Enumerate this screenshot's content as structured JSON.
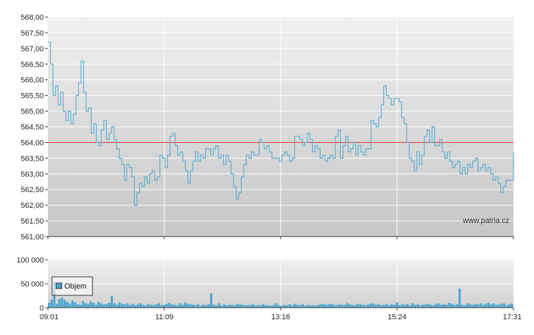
{
  "watermark": "www.patria.cz",
  "chart_data": [
    {
      "type": "line",
      "ylim": [
        561.0,
        568.0
      ],
      "y_ticks": [
        "568,00",
        "567,50",
        "567,00",
        "566,50",
        "566,00",
        "565,50",
        "565,00",
        "564,50",
        "564,00",
        "563,50",
        "563,00",
        "562,50",
        "562,00",
        "561,50",
        "561,00"
      ],
      "x_ticks": [
        "09:01",
        "11:09",
        "13:16",
        "15:24",
        "17:31"
      ],
      "reference_line": 564.0,
      "colors": {
        "line": "#5aaed2",
        "reference": "#e02020",
        "grid": "#ffffff"
      },
      "series": [
        {
          "values": [
            567.2,
            566.5,
            565.5,
            565.8,
            565.2,
            565.6,
            565.0,
            564.7,
            565.0,
            564.6,
            564.9,
            565.5,
            565.9,
            566.6,
            565.6,
            565.0,
            565.1,
            564.3,
            564.6,
            564.0,
            563.9,
            564.4,
            564.7,
            564.1,
            564.3,
            564.5,
            564.1,
            563.8,
            563.5,
            563.3,
            562.8,
            563.3,
            563.2,
            562.9,
            562.0,
            562.4,
            562.7,
            562.6,
            562.9,
            562.7,
            563.0,
            563.1,
            562.8,
            562.9,
            563.6,
            563.5,
            563.2,
            563.6,
            564.2,
            564.3,
            563.9,
            563.6,
            563.7,
            563.4,
            563.1,
            562.7,
            563.1,
            563.4,
            563.7,
            563.4,
            563.6,
            563.5,
            563.8,
            563.8,
            563.6,
            563.8,
            563.9,
            563.5,
            563.6,
            563.3,
            563.6,
            563.4,
            563.0,
            562.6,
            562.2,
            562.4,
            562.9,
            563.3,
            563.6,
            563.5,
            563.7,
            563.6,
            563.6,
            564.1,
            564.0,
            563.8,
            563.9,
            563.7,
            563.5,
            563.5,
            563.5,
            563.4,
            563.6,
            563.7,
            563.6,
            563.4,
            563.5,
            564.2,
            564.2,
            564.1,
            563.9,
            564.0,
            564.3,
            564.1,
            563.7,
            563.9,
            563.8,
            563.5,
            563.6,
            563.4,
            563.5,
            563.6,
            563.5,
            564.2,
            564.4,
            563.5,
            563.9,
            564.2,
            563.7,
            563.8,
            564.0,
            563.6,
            563.9,
            563.7,
            563.6,
            563.8,
            563.8,
            564.7,
            564.6,
            564.5,
            564.8,
            565.2,
            565.8,
            565.5,
            565.4,
            565.2,
            565.4,
            565.4,
            565.3,
            564.8,
            564.6,
            564.0,
            563.5,
            563.4,
            563.1,
            563.7,
            563.3,
            563.6,
            564.2,
            564.4,
            564.0,
            564.5,
            563.9,
            563.9,
            564.1,
            563.7,
            563.5,
            563.7,
            563.4,
            563.2,
            563.3,
            563.4,
            563.0,
            563.2,
            563.0,
            563.3,
            563.2,
            563.4,
            563.5,
            563.1,
            563.2,
            563.3,
            563.1,
            563.2,
            563.0,
            562.8,
            562.9,
            562.7,
            562.4,
            562.6,
            562.8,
            562.8,
            562.8,
            563.7
          ]
        }
      ]
    },
    {
      "type": "bar",
      "ylim": [
        0,
        100000
      ],
      "y_ticks": [
        "100 000",
        "50 000",
        "0"
      ],
      "x_ticks": [
        "09:01",
        "11:09",
        "13:16",
        "15:24",
        "17:31"
      ],
      "legend": {
        "label": "Objem",
        "position": "top-left"
      },
      "colors": {
        "bar": "#4aa6cf",
        "legend_swatch": "#4aa6cf"
      },
      "series": [
        {
          "name": "Objem",
          "values": [
            10000,
            17000,
            54000,
            8000,
            18000,
            21000,
            16000,
            12000,
            9000,
            15000,
            11000,
            7000,
            6000,
            14000,
            9000,
            8000,
            13000,
            10000,
            6000,
            12000,
            9000,
            7000,
            8000,
            10000,
            25000,
            9000,
            6000,
            11000,
            8000,
            7000,
            9000,
            6000,
            8000,
            5000,
            7000,
            9000,
            6000,
            5000,
            8000,
            6000,
            5000,
            7000,
            9000,
            5000,
            6000,
            8000,
            10000,
            7000,
            6000,
            5000,
            9000,
            6000,
            11000,
            8000,
            7000,
            6000,
            5000,
            7000,
            4000,
            6000,
            5000,
            7000,
            30000,
            6000,
            5000,
            9000,
            4000,
            7000,
            5000,
            6000,
            6000,
            5000,
            8000,
            7000,
            6000,
            5000,
            5000,
            6000,
            7000,
            4000,
            6000,
            5000,
            8000,
            5000,
            5000,
            4000,
            6000,
            9000,
            5000,
            4000,
            6000,
            5000,
            7000,
            5000,
            8000,
            6000,
            5000,
            7000,
            4000,
            6000,
            5000,
            5000,
            4000,
            6000,
            7000,
            8000,
            6000,
            7000,
            8000,
            6000,
            5000,
            7000,
            6000,
            6000,
            9000,
            7000,
            6000,
            5000,
            8000,
            7000,
            6000,
            5000,
            7000,
            8000,
            9000,
            6000,
            7000,
            5000,
            6000,
            8000,
            5000,
            7000,
            6000,
            11000,
            5000,
            7000,
            6000,
            8000,
            5000,
            9000,
            6000,
            7000,
            5000,
            6000,
            7000,
            8000,
            6000,
            5000,
            8000,
            9000,
            6000,
            7000,
            6000,
            10000,
            8000,
            6000,
            7000,
            40000,
            6000,
            5000,
            9000,
            7000,
            6000,
            8000,
            7000,
            9000,
            6000,
            8000,
            10000,
            7000,
            9000,
            6000,
            7000,
            8000,
            9000,
            5000,
            7000,
            8000
          ]
        }
      ]
    }
  ]
}
